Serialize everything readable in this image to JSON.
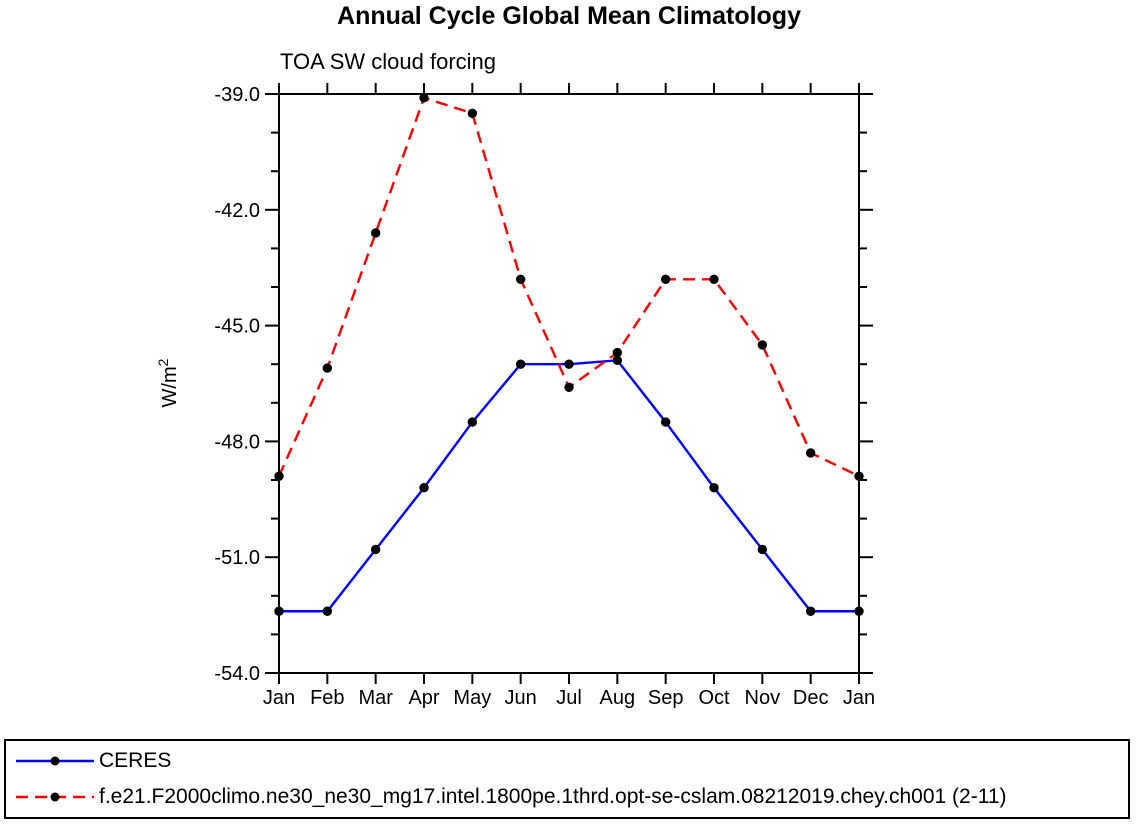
{
  "page": {
    "title": "Annual Cycle Global Mean Climatology",
    "subtitle": "TOA SW cloud forcing"
  },
  "chart_data": {
    "type": "line",
    "title": "Annual Cycle Global Mean Climatology",
    "subtitle": "TOA SW cloud forcing",
    "xlabel": "",
    "ylabel": "W/m²",
    "categories": [
      "Jan",
      "Feb",
      "Mar",
      "Apr",
      "May",
      "Jun",
      "Jul",
      "Aug",
      "Sep",
      "Oct",
      "Nov",
      "Dec",
      "Jan"
    ],
    "ylim": [
      -54.0,
      -39.0
    ],
    "ytick_labels": [
      "-39.0",
      "-42.0",
      "-45.0",
      "-48.0",
      "-51.0",
      "-54.0"
    ],
    "yticks_major": [
      -39.0,
      -42.0,
      -45.0,
      -48.0,
      -51.0,
      -54.0
    ],
    "y_minor_tick_interval": 1.0,
    "grid": false,
    "legend_position": "bottom-box",
    "marker": "filled-circle",
    "marker_color": "#000000",
    "series": [
      {
        "name": "CERES",
        "color": "#0000ff",
        "style": "solid",
        "values": [
          -52.4,
          -52.4,
          -50.8,
          -49.2,
          -47.5,
          -46.0,
          -46.0,
          -45.9,
          -47.5,
          -49.2,
          -50.8,
          -52.4,
          -52.4
        ]
      },
      {
        "name": "f.e21.F2000climo.ne30_ne30_mg17.intel.1800pe.1thrd.opt-se-cslam.08212019.chey.ch001 (2-11)",
        "color": "#ff0000",
        "style": "dashed",
        "values": [
          -48.9,
          -46.1,
          -42.6,
          -39.1,
          -39.5,
          -43.8,
          -46.6,
          -45.7,
          -43.8,
          -43.8,
          -45.5,
          -48.3,
          -48.9
        ]
      }
    ]
  }
}
